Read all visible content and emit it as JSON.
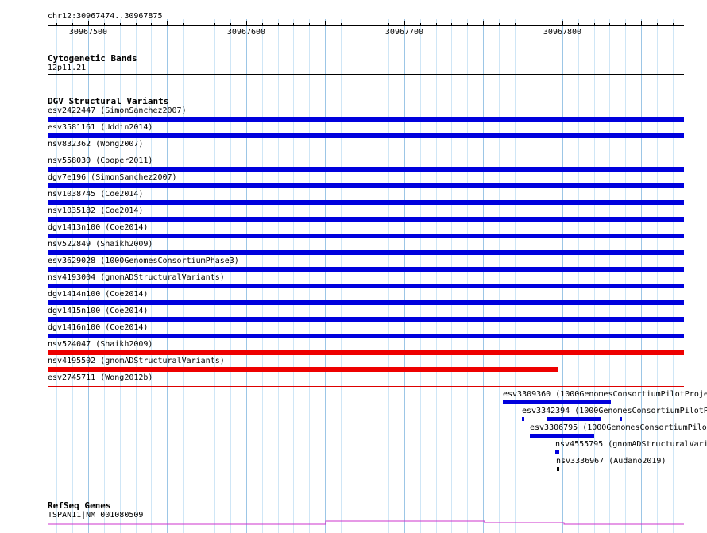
{
  "ruler": {
    "region": "chr12:30967474..30967875",
    "ticks": [
      "30967500",
      "30967600",
      "30967700",
      "30967800"
    ]
  },
  "cytoband": {
    "title": "Cytogenetic Bands",
    "band": "12p11.21"
  },
  "dgv": {
    "title": "DGV Structural Variants",
    "variants": [
      {
        "label": "esv2422447 (SimonSanchez2007)",
        "color": "#0000dd",
        "style": "bar"
      },
      {
        "label": "esv3581161 (Uddin2014)",
        "color": "#0000dd",
        "style": "bar"
      },
      {
        "label": "nsv832362 (Wong2007)",
        "color": "#dd0000",
        "style": "line"
      },
      {
        "label": "nsv558030 (Cooper2011)",
        "color": "#0000dd",
        "style": "bar"
      },
      {
        "label": "dgv7e196 (SimonSanchez2007)",
        "color": "#0000dd",
        "style": "bar"
      },
      {
        "label": "nsv1038745 (Coe2014)",
        "color": "#0000dd",
        "style": "bar"
      },
      {
        "label": "nsv1035182 (Coe2014)",
        "color": "#0000dd",
        "style": "bar"
      },
      {
        "label": "dgv1413n100 (Coe2014)",
        "color": "#0000dd",
        "style": "bar"
      },
      {
        "label": "nsv522849 (Shaikh2009)",
        "color": "#0000dd",
        "style": "bar"
      },
      {
        "label": "esv3629028 (1000GenomesConsortiumPhase3)",
        "color": "#0000dd",
        "style": "bar"
      },
      {
        "label": "nsv4193004 (gnomADStructuralVariants)",
        "color": "#0000dd",
        "style": "bar"
      },
      {
        "label": "dgv1414n100 (Coe2014)",
        "color": "#0000dd",
        "style": "bar"
      },
      {
        "label": "dgv1415n100 (Coe2014)",
        "color": "#0000dd",
        "style": "bar"
      },
      {
        "label": "dgv1416n100 (Coe2014)",
        "color": "#0000dd",
        "style": "bar"
      },
      {
        "label": "nsv524047 (Shaikh2009)",
        "color": "#ee0000",
        "style": "bar"
      },
      {
        "label": "nsv4195502 (gnomADStructuralVariants)",
        "color": "#ee0000",
        "style": "bar"
      },
      {
        "label": "esv2745711 (Wong2012b)",
        "color": "#dd0000",
        "style": "line"
      }
    ],
    "small_variants": [
      {
        "label": "esv3309360 (1000GenomesConsortiumPilotProje",
        "color": "#0000dd"
      },
      {
        "label": "esv3342394 (1000GenomesConsortiumPilotP",
        "color": "#0000dd"
      },
      {
        "label": "esv3306795 (1000GenomesConsortiumPilot",
        "color": "#0000dd"
      },
      {
        "label": "nsv4555795 (gnomADStructuralVari",
        "color": "#0000dd"
      },
      {
        "label": "nsv3336967 (Audano2019)",
        "color": "#000000"
      }
    ]
  },
  "refseq": {
    "title": "RefSeq Genes",
    "gene": "TSPAN11|NM_001080509",
    "color": "#cc33cc"
  }
}
